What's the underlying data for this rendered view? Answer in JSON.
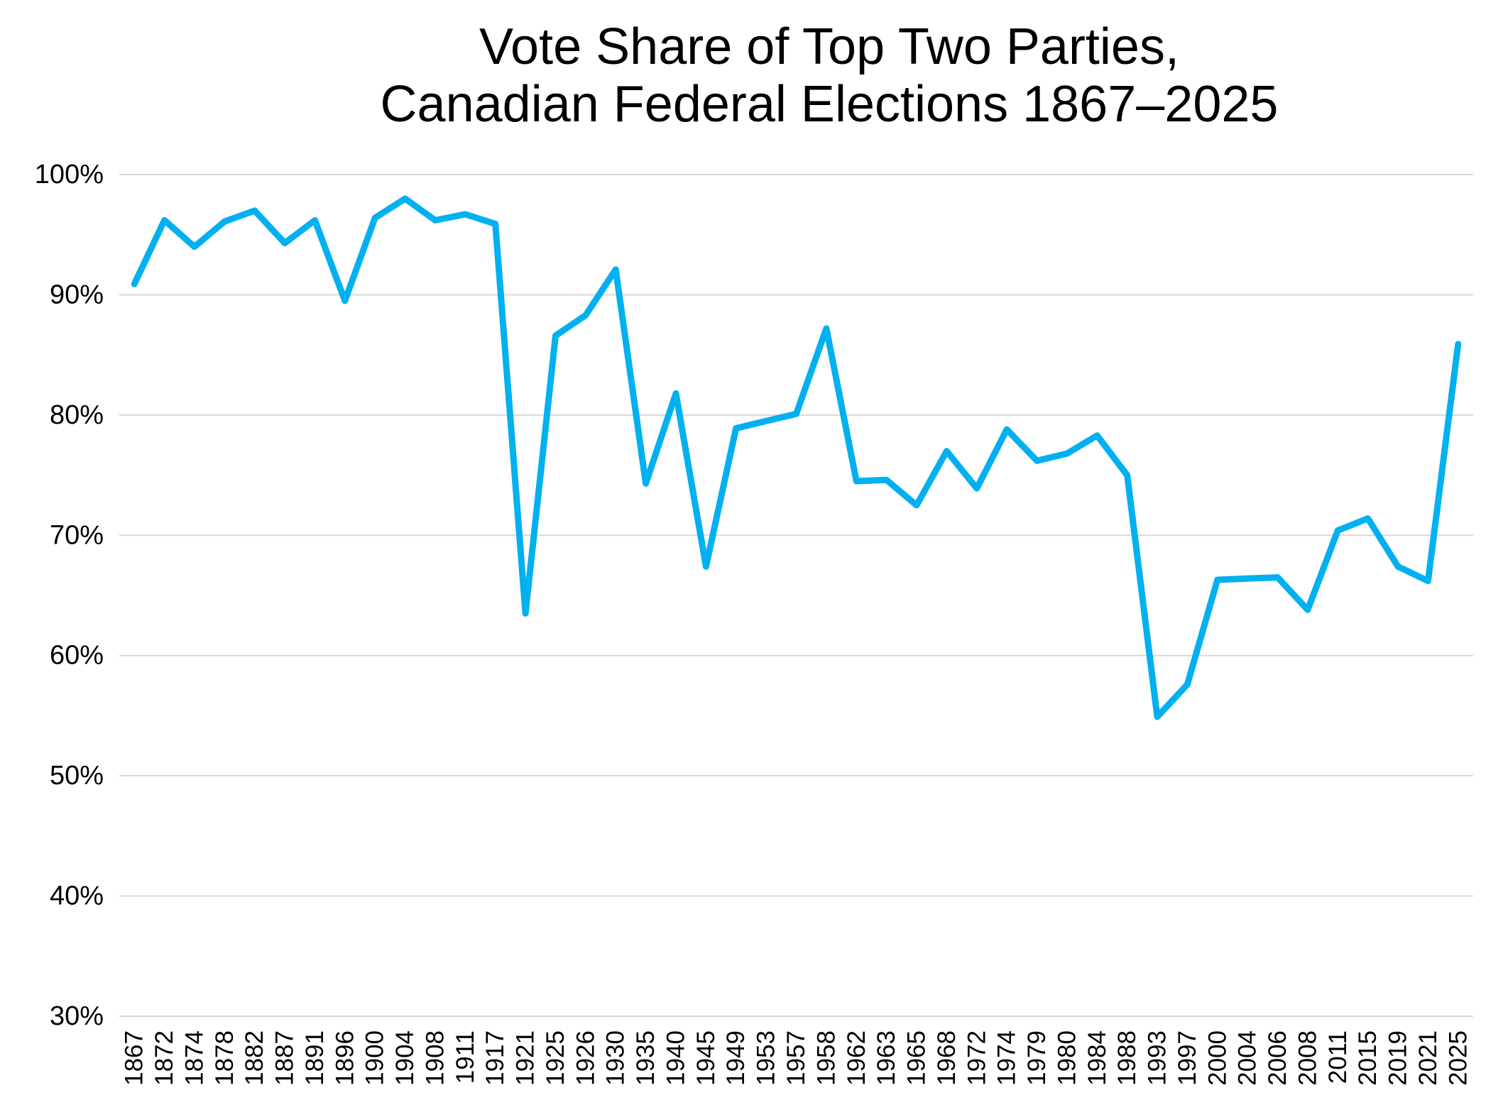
{
  "page": {
    "background_color": "#FFFFFF"
  },
  "title": {
    "line1": "Vote Share of Top Two Parties,",
    "line2": "Canadian Federal Elections 1867–2025"
  },
  "chart_data": {
    "type": "line",
    "title": "Vote Share of Top Two Parties, Canadian Federal Elections 1867–2025",
    "categories": [
      "1867",
      "1872",
      "1874",
      "1878",
      "1882",
      "1887",
      "1891",
      "1896",
      "1900",
      "1904",
      "1908",
      "1911",
      "1917",
      "1921",
      "1925",
      "1926",
      "1930",
      "1935",
      "1940",
      "1945",
      "1949",
      "1953",
      "1957",
      "1958",
      "1962",
      "1963",
      "1965",
      "1968",
      "1972",
      "1974",
      "1979",
      "1980",
      "1984",
      "1988",
      "1993",
      "1997",
      "2000",
      "2004",
      "2006",
      "2008",
      "2011",
      "2015",
      "2019",
      "2021",
      "2025"
    ],
    "values": [
      90.9,
      96.2,
      94.0,
      96.1,
      97.0,
      94.3,
      96.2,
      89.5,
      96.4,
      98.0,
      96.2,
      96.7,
      95.9,
      63.5,
      86.6,
      88.3,
      92.1,
      74.3,
      81.8,
      67.4,
      78.9,
      79.5,
      80.1,
      87.2,
      74.5,
      74.6,
      72.5,
      77.0,
      73.9,
      78.8,
      76.2,
      76.8,
      78.3,
      75.0,
      54.9,
      57.6,
      66.3,
      66.4,
      66.5,
      63.8,
      70.4,
      71.4,
      67.4,
      66.2,
      85.9
    ],
    "xlabel": "",
    "ylabel": "",
    "ylim": [
      30,
      100
    ],
    "ytick_step": 10,
    "ytick_labels": [
      "30%",
      "40%",
      "50%",
      "60%",
      "70%",
      "80%",
      "90%",
      "100%"
    ],
    "grid": "horizontal-only",
    "legend_position": "none",
    "x_label_rotation_deg": -90,
    "colors": {
      "line": "#00B0F0",
      "gridline": "#D9D9D9",
      "text": "#000000",
      "background": "#FFFFFF"
    }
  }
}
